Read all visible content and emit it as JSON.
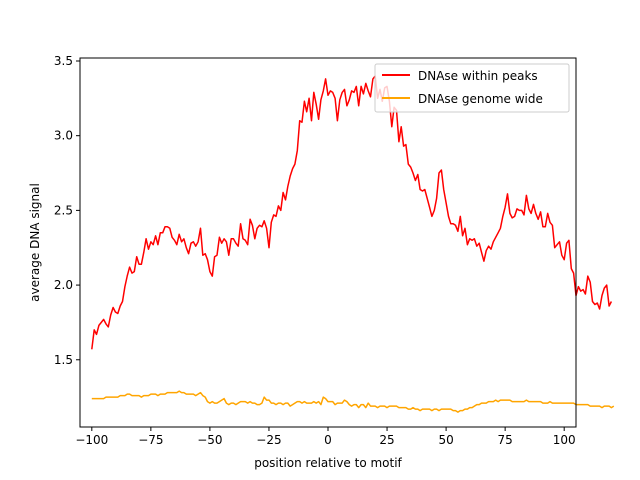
{
  "chart_data": {
    "type": "line",
    "title": "",
    "xlabel": "position relative to motif",
    "ylabel": "average DNA signal",
    "xlim": [
      -105,
      105
    ],
    "ylim": [
      1.05,
      3.52
    ],
    "xticks": [
      -100,
      -75,
      -50,
      -25,
      0,
      25,
      50,
      75,
      100
    ],
    "yticks": [
      1.5,
      2.0,
      2.5,
      3.0,
      3.5
    ],
    "grid": false,
    "legend_position": "top-right",
    "series": [
      {
        "name": "DNAse within peaks",
        "color": "#ff0000",
        "x_start": -100,
        "x_step": 1,
        "values": [
          1.57,
          1.7,
          1.67,
          1.73,
          1.75,
          1.77,
          1.74,
          1.72,
          1.8,
          1.85,
          1.82,
          1.81,
          1.86,
          1.89,
          1.99,
          2.06,
          2.12,
          2.08,
          2.09,
          2.19,
          2.14,
          2.14,
          2.22,
          2.31,
          2.24,
          2.29,
          2.27,
          2.33,
          2.27,
          2.35,
          2.35,
          2.39,
          2.39,
          2.38,
          2.32,
          2.3,
          2.27,
          2.34,
          2.29,
          2.31,
          2.25,
          2.21,
          2.28,
          2.29,
          2.26,
          2.29,
          2.38,
          2.2,
          2.21,
          2.17,
          2.09,
          2.06,
          2.19,
          2.2,
          2.32,
          2.28,
          2.31,
          2.29,
          2.2,
          2.31,
          2.31,
          2.28,
          2.26,
          2.41,
          2.31,
          2.3,
          2.27,
          2.44,
          2.4,
          2.31,
          2.38,
          2.4,
          2.39,
          2.43,
          2.38,
          2.25,
          2.42,
          2.47,
          2.46,
          2.53,
          2.5,
          2.62,
          2.57,
          2.66,
          2.73,
          2.78,
          2.81,
          2.9,
          3.1,
          3.09,
          3.23,
          3.16,
          3.25,
          3.1,
          3.29,
          3.21,
          3.11,
          3.24,
          3.3,
          3.38,
          3.27,
          3.3,
          3.29,
          3.25,
          3.1,
          3.24,
          3.29,
          3.31,
          3.2,
          3.24,
          3.3,
          3.29,
          3.33,
          3.2,
          3.33,
          3.28,
          3.35,
          3.3,
          3.26,
          3.38,
          3.4,
          3.25,
          3.31,
          3.23,
          3.32,
          3.33,
          3.23,
          3.06,
          3.19,
          3.17,
          2.96,
          3.06,
          2.93,
          2.94,
          2.81,
          2.79,
          2.75,
          2.7,
          2.74,
          2.64,
          2.63,
          2.64,
          2.58,
          2.52,
          2.46,
          2.5,
          2.58,
          2.75,
          2.77,
          2.64,
          2.55,
          2.46,
          2.41,
          2.41,
          2.4,
          2.36,
          2.46,
          2.33,
          2.38,
          2.27,
          2.31,
          2.3,
          2.31,
          2.26,
          2.28,
          2.22,
          2.16,
          2.23,
          2.26,
          2.24,
          2.29,
          2.32,
          2.35,
          2.38,
          2.46,
          2.52,
          2.61,
          2.48,
          2.45,
          2.46,
          2.51,
          2.5,
          2.5,
          2.47,
          2.6,
          2.51,
          2.48,
          2.54,
          2.48,
          2.44,
          2.49,
          2.39,
          2.39,
          2.48,
          2.42,
          2.4,
          2.25,
          2.27,
          2.29,
          2.2,
          2.17,
          2.28,
          2.3,
          2.11,
          2.08,
          1.93,
          1.99,
          1.96,
          1.97,
          1.94,
          2.06,
          2.02,
          1.89,
          1.87,
          1.88,
          1.84,
          1.93,
          1.98,
          2.0,
          1.86,
          1.89
        ]
      },
      {
        "name": "DNAse genome wide",
        "color": "#ffa500",
        "x_start": -100,
        "x_step": 1,
        "values": [
          1.24,
          1.24,
          1.24,
          1.24,
          1.24,
          1.24,
          1.25,
          1.25,
          1.25,
          1.25,
          1.25,
          1.25,
          1.26,
          1.26,
          1.26,
          1.27,
          1.27,
          1.26,
          1.26,
          1.26,
          1.26,
          1.25,
          1.26,
          1.26,
          1.26,
          1.27,
          1.27,
          1.27,
          1.26,
          1.27,
          1.27,
          1.27,
          1.28,
          1.28,
          1.28,
          1.28,
          1.28,
          1.29,
          1.28,
          1.28,
          1.27,
          1.27,
          1.27,
          1.27,
          1.26,
          1.27,
          1.28,
          1.26,
          1.25,
          1.22,
          1.21,
          1.22,
          1.21,
          1.21,
          1.22,
          1.23,
          1.24,
          1.21,
          1.2,
          1.21,
          1.21,
          1.2,
          1.21,
          1.22,
          1.22,
          1.22,
          1.21,
          1.22,
          1.21,
          1.21,
          1.2,
          1.2,
          1.21,
          1.25,
          1.23,
          1.23,
          1.21,
          1.21,
          1.2,
          1.21,
          1.21,
          1.2,
          1.21,
          1.21,
          1.19,
          1.2,
          1.21,
          1.22,
          1.22,
          1.21,
          1.22,
          1.21,
          1.21,
          1.21,
          1.22,
          1.21,
          1.22,
          1.2,
          1.25,
          1.24,
          1.22,
          1.22,
          1.22,
          1.2,
          1.21,
          1.21,
          1.21,
          1.23,
          1.22,
          1.2,
          1.19,
          1.2,
          1.2,
          1.18,
          1.2,
          1.2,
          1.18,
          1.21,
          1.19,
          1.19,
          1.19,
          1.18,
          1.19,
          1.19,
          1.19,
          1.18,
          1.19,
          1.19,
          1.19,
          1.19,
          1.18,
          1.18,
          1.18,
          1.18,
          1.17,
          1.17,
          1.18,
          1.17,
          1.17,
          1.16,
          1.17,
          1.17,
          1.17,
          1.17,
          1.16,
          1.17,
          1.17,
          1.16,
          1.17,
          1.17,
          1.17,
          1.17,
          1.17,
          1.16,
          1.16,
          1.15,
          1.16,
          1.16,
          1.17,
          1.17,
          1.18,
          1.18,
          1.19,
          1.2,
          1.2,
          1.21,
          1.21,
          1.21,
          1.22,
          1.22,
          1.22,
          1.23,
          1.22,
          1.23,
          1.23,
          1.23,
          1.23,
          1.23,
          1.22,
          1.22,
          1.22,
          1.22,
          1.22,
          1.22,
          1.23,
          1.22,
          1.22,
          1.22,
          1.22,
          1.22,
          1.22,
          1.21,
          1.21,
          1.21,
          1.22,
          1.21,
          1.21,
          1.21,
          1.21,
          1.21,
          1.21,
          1.21,
          1.21,
          1.21,
          1.21,
          1.2,
          1.2,
          1.2,
          1.2,
          1.2,
          1.2,
          1.19,
          1.19,
          1.19,
          1.19,
          1.19,
          1.18,
          1.19,
          1.19,
          1.19,
          1.18,
          1.19
        ]
      }
    ]
  }
}
